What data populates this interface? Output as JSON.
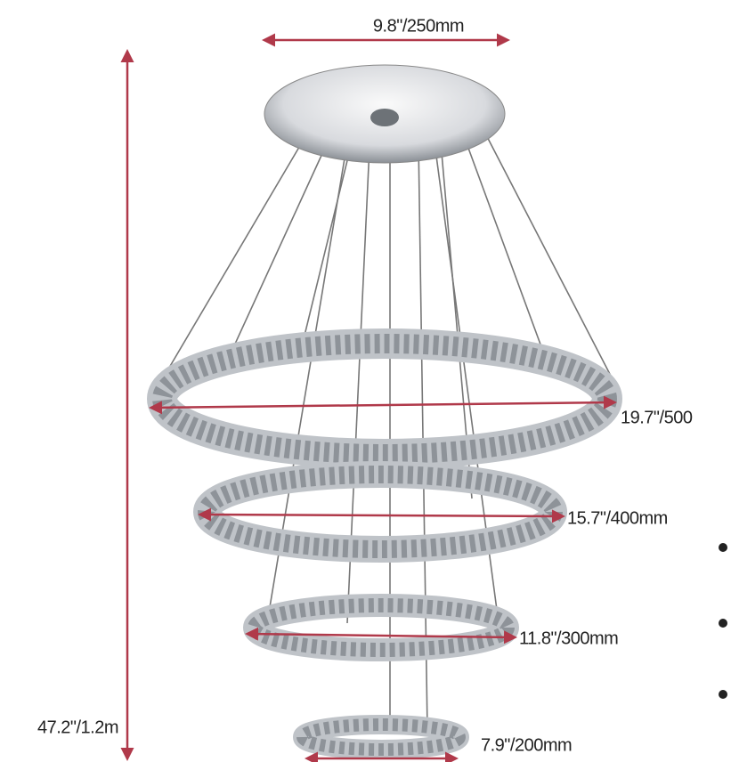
{
  "dimensions": {
    "canopy_width": "9.8\"/250mm",
    "ring_1": "19.7\"/500",
    "ring_2": "15.7\"/400mm",
    "ring_3": "11.8\"/300mm",
    "ring_4": "7.9\"/200mm",
    "total_height": "47.2\"/1.2m"
  }
}
